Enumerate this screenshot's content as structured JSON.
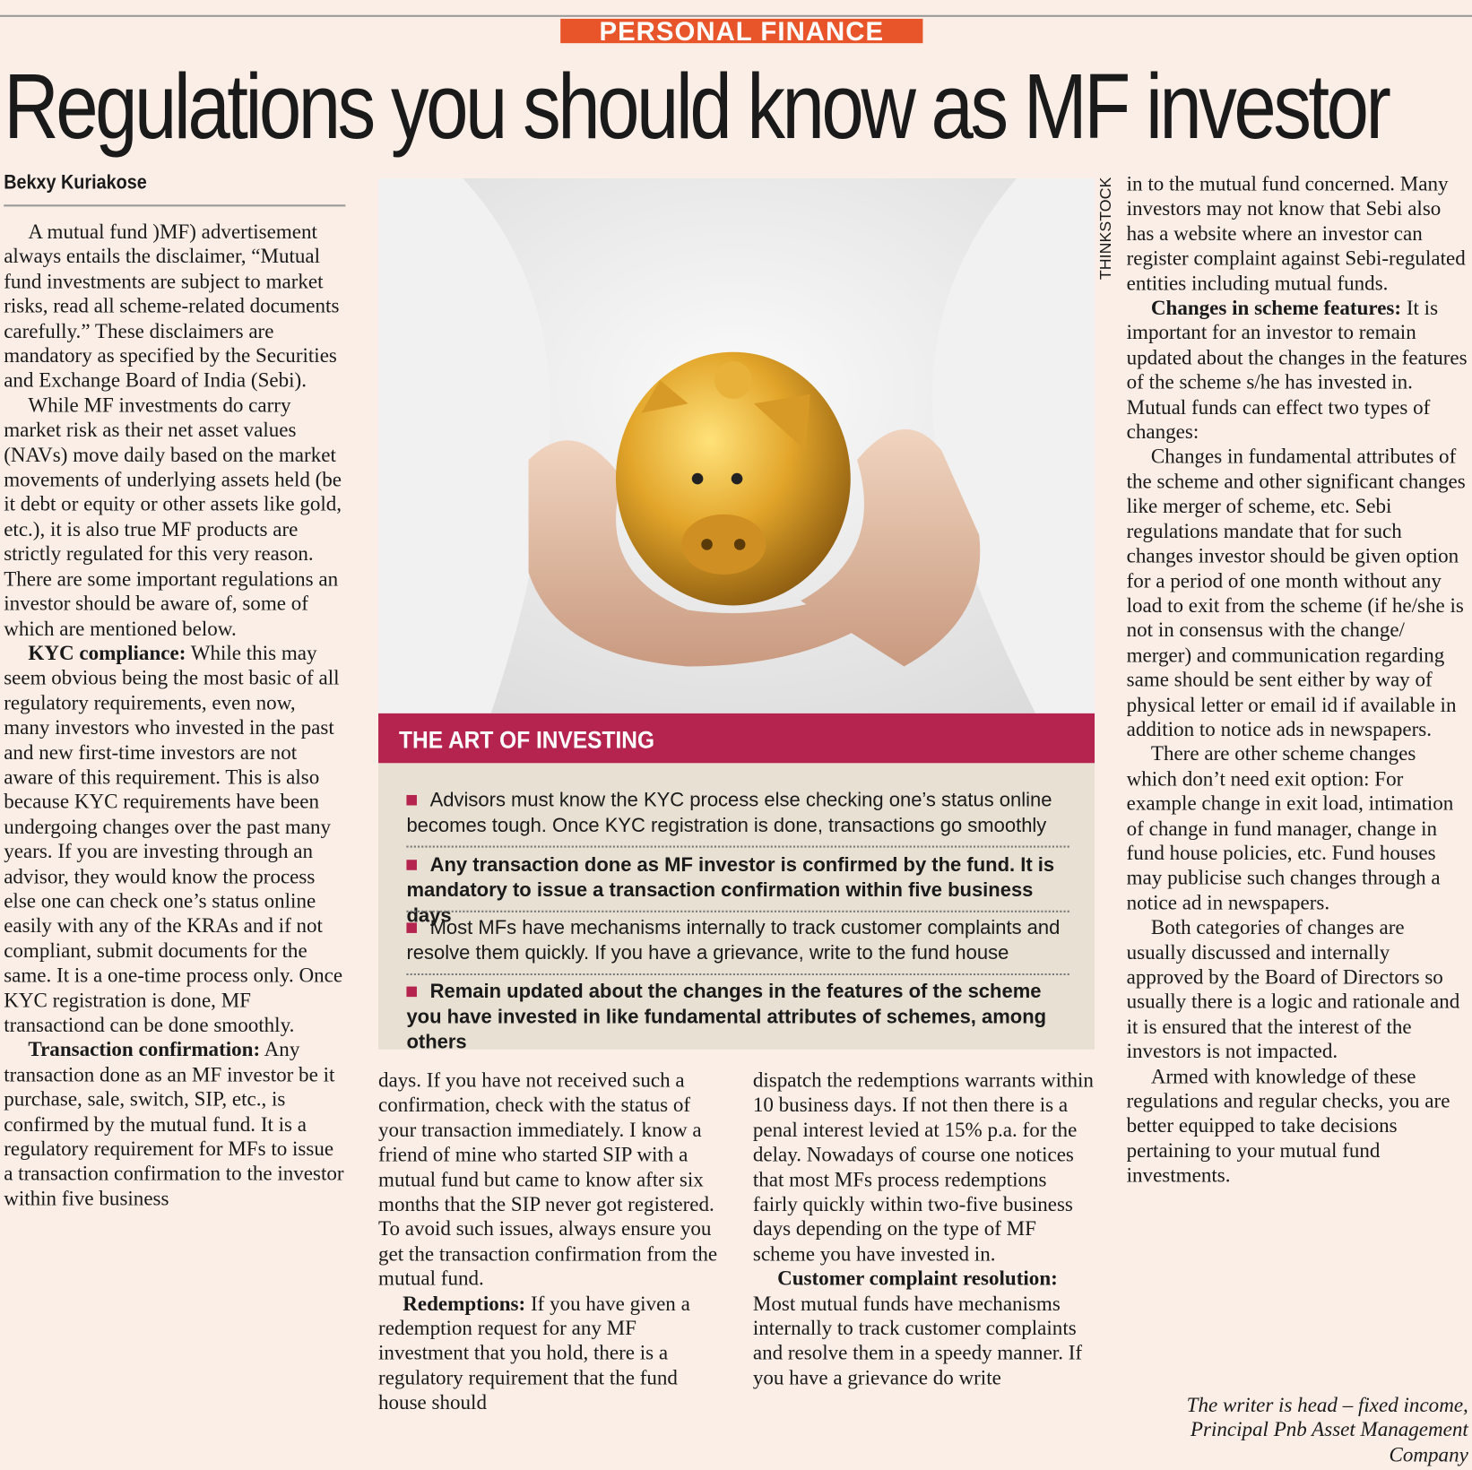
{
  "header": {
    "section": "PERSONAL FINANCE",
    "headline": "Regulations you should know as MF investor",
    "byline": "Bekxy Kuriakose",
    "photo_credit": "THINKSTOCK"
  },
  "columns": [
    [
      {
        "text": "A mutual fund )MF) advertisement always entails the disclaimer, “Mutual fund investments are subject to market risks, read all scheme-related documents carefully.”  These disclaimers are mandatory as specified by the Securities and Exchange Board of India (Sebi)."
      },
      {
        "text": "While MF investments do carry market risk as their net asset values (NAVs) move daily based on the market movements of underlying assets held (be it debt or equity or other assets like gold, etc.), it is also true MF products are strictly regulated for this very reason. There are some important regulations an investor should be aware of, some of which are mentioned below."
      },
      {
        "lead": "KYC compliance:",
        "text": "While this may seem obvious being the most basic of all regulatory requirements, even now, many investors who invested in the past and new first-time investors are not aware of this requirement. This is also because KYC requirements have been undergoing changes over the past many years. If you are investing through an advisor, they would know the process else one can check one’s status online easily with any of the KRAs and if not compliant, submit documents for the same. It is a one-time process only. Once KYC registration is done, MF transactiond can be done smoothly."
      },
      {
        "lead": "Transaction confirmation:",
        "text": "Any transaction done as an MF investor be it purchase, sale, switch, SIP, etc., is confirmed by the mutual fund. It is a regulatory requirement for MFs to issue a transaction confirmation to the investor within five business"
      }
    ],
    [
      {
        "text": "days. If you have not received such a confirmation, check with the status of your transaction immediately. I know a friend of mine who started SIP with a mutual fund but came to know after six months that the SIP never got registered. To avoid such issues, always ensure you get the transaction confirmation from the mutual fund."
      },
      {
        "lead": "Redemptions:",
        "text": "If you have given a redemption request for any MF investment that you hold, there is a regulatory requirement that the fund house should"
      }
    ],
    [
      {
        "text": "dispatch the redemptions warrants within 10 business days. If not then there is a penal interest levied at 15% p.a. for the delay. Nowadays of course one notices that most MFs process redemptions fairly quickly within two-five business days depending on the type of MF scheme you have invested in."
      },
      {
        "lead": "Customer complaint resolution:",
        "text": "Most mutual funds have mechanisms internally to track customer complaints and resolve them in a speedy manner. If you have a grievance do write"
      }
    ],
    [
      {
        "text": "in to the mutual fund concerned. Many investors may not know that Sebi also has a website where an investor can register complaint against Sebi-regulated entities including mutual funds."
      },
      {
        "lead": "Changes in scheme features:",
        "text": "It is important for an investor to remain updated about the changes in the features of the scheme s/he has invested in. Mutual funds can effect two types of changes:"
      },
      {
        "text": "Changes in fundamental attributes of the scheme and other significant changes like merger of scheme, etc. Sebi regulations mandate that for such changes investor should be given option for a period of one month without any load to exit from the scheme (if he/she is not in consensus with the change/ merger) and communication regarding same should be sent either by way of physical letter or email id if available in addition to notice ads in newspapers."
      },
      {
        "text": "There are other scheme changes which don’t need exit option: For example change in exit load, intimation of change in fund manager, change in fund house policies, etc.  Fund houses may publicise such changes through a notice ad in newspapers."
      },
      {
        "text": "Both categories of changes are usually discussed and internally approved by the Board of Directors so usually there is a logic and rationale and it is ensured that the interest of the investors is not impacted."
      },
      {
        "text": "Armed with knowledge of these regulations and regular checks, you are better equipped to take decisions pertaining to your mutual fund investments."
      }
    ]
  ],
  "author_note": "The writer is head – fixed income, Principal Pnb Asset Management Company",
  "box": {
    "title": "THE ART OF INVESTING",
    "items": [
      {
        "text": "Advisors must know the KYC process else checking one’s status online becomes tough. Once KYC registration is done, transactions go smoothly",
        "bold": false
      },
      {
        "text": "Any transaction done as MF investor is confirmed by the fund. It is mandatory to issue a transaction confirmation within five business days",
        "bold": true
      },
      {
        "text": "Most MFs have mechanisms internally to track customer complaints and resolve them quickly. If you have a grievance, write to the fund house",
        "bold": false
      },
      {
        "text": "Remain updated about the changes in the features of the scheme you have invested in like fundamental attributes of schemes, among others",
        "bold": true
      }
    ]
  }
}
